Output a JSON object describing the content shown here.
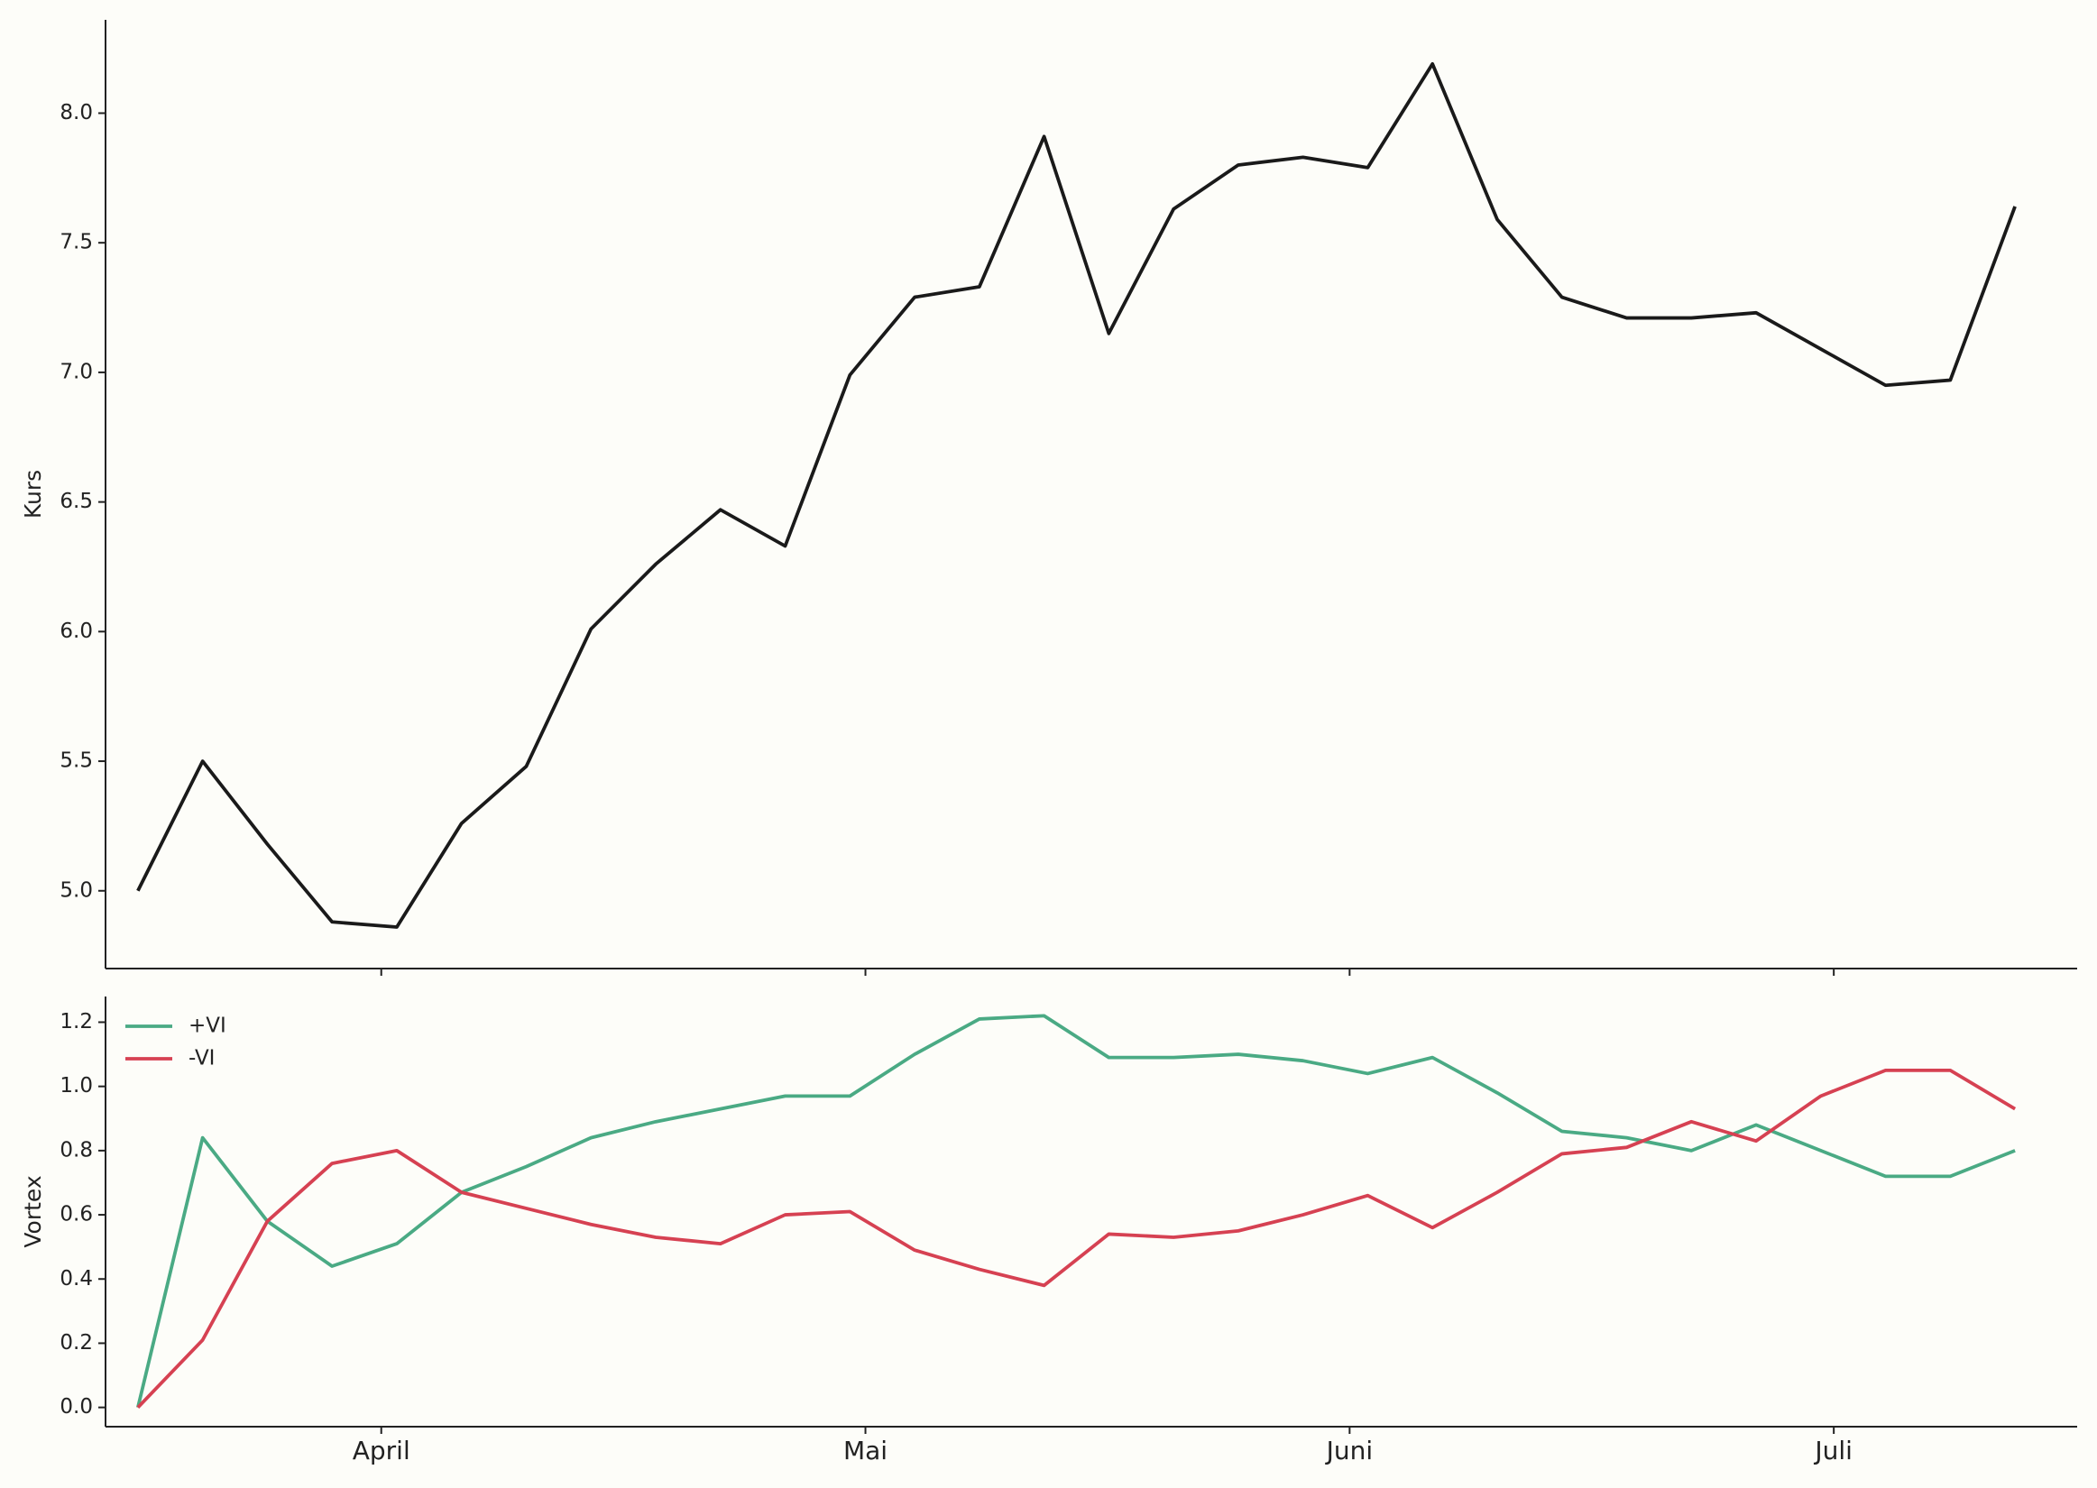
{
  "chart_data": [
    {
      "type": "line",
      "ylabel": "Kurs",
      "x": [
        0,
        1,
        2,
        3,
        4,
        5,
        6,
        7,
        8,
        9,
        10,
        11,
        12,
        13,
        14,
        15,
        16,
        17,
        18,
        19,
        20,
        21,
        22,
        23,
        24,
        25,
        26,
        27,
        28,
        29
      ],
      "series": [
        {
          "name": "Kurs",
          "color": "#1a1a1a",
          "values": [
            5.0,
            5.5,
            5.18,
            4.88,
            4.86,
            5.26,
            5.48,
            6.01,
            6.26,
            6.47,
            6.33,
            6.99,
            7.29,
            7.33,
            7.91,
            7.15,
            7.63,
            7.8,
            7.83,
            7.79,
            8.19,
            7.59,
            7.29,
            7.21,
            7.21,
            7.23,
            7.09,
            6.95,
            6.97,
            7.64
          ]
        }
      ],
      "xlim": [
        -0.5,
        29.96
      ],
      "ylim": [
        4.7,
        8.36
      ],
      "yticks": [
        {
          "value": 5,
          "label": "5.0"
        },
        5.5,
        {
          "value": 6,
          "label": "6.0"
        },
        6.5,
        {
          "value": 7,
          "label": "7.0"
        },
        7.5,
        {
          "value": 8,
          "label": "8.0"
        }
      ]
    },
    {
      "type": "line",
      "ylabel": "Vortex",
      "legend": "upper left",
      "x": [
        0,
        1,
        2,
        3,
        4,
        5,
        6,
        7,
        8,
        9,
        10,
        11,
        12,
        13,
        14,
        15,
        16,
        17,
        18,
        19,
        20,
        21,
        22,
        23,
        24,
        25,
        26,
        27,
        28,
        29
      ],
      "series": [
        {
          "name": "+VI",
          "color": "#4aaa84",
          "values": [
            0,
            0.84,
            0.58,
            0.44,
            0.51,
            0.67,
            0.75,
            0.84,
            0.89,
            0.93,
            0.97,
            0.97,
            1.1,
            1.21,
            1.22,
            1.09,
            1.09,
            1.1,
            1.08,
            1.04,
            1.09,
            0.98,
            0.86,
            0.84,
            0.8,
            0.88,
            0.8,
            0.72,
            0.72,
            0.8
          ]
        },
        {
          "name": "-VI",
          "color": "#d64152",
          "values": [
            0,
            0.21,
            0.58,
            0.76,
            0.8,
            0.67,
            0.62,
            0.57,
            0.53,
            0.51,
            0.6,
            0.61,
            0.49,
            0.43,
            0.38,
            0.54,
            0.53,
            0.55,
            0.6,
            0.66,
            0.56,
            0.67,
            0.79,
            0.81,
            0.89,
            0.83,
            0.97,
            1.05,
            1.05,
            0.93
          ]
        }
      ],
      "xlim": [
        -0.5,
        29.96
      ],
      "ylim": [
        -0.06,
        1.28
      ],
      "xticks": [
        {
          "value": 3.76,
          "label": "April"
        },
        {
          "value": 11.24,
          "label": "Mai"
        },
        {
          "value": 18.72,
          "label": "Juni"
        },
        {
          "value": 26.2,
          "label": "Juli"
        }
      ],
      "yticks": [
        {
          "value": 0,
          "label": "0.0"
        },
        0.2,
        0.4,
        0.6,
        0.8,
        {
          "value": 1,
          "label": "1.0"
        },
        1.2
      ]
    }
  ]
}
